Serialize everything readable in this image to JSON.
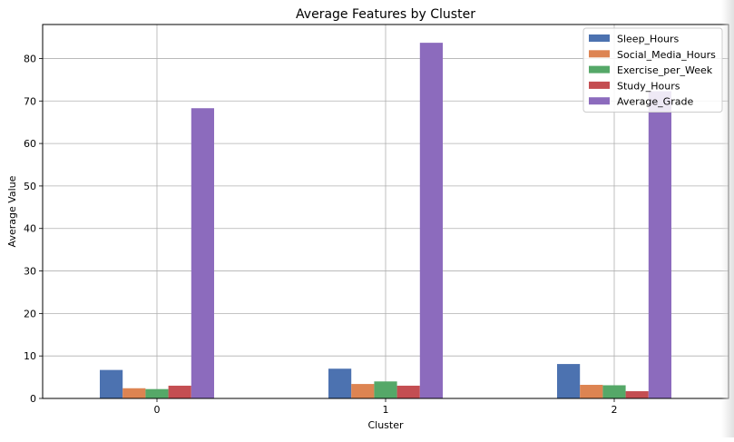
{
  "chart_data": {
    "type": "bar",
    "title": "Average Features by Cluster",
    "xlabel": "Cluster",
    "ylabel": "Average Value",
    "categories": [
      "0",
      "1",
      "2"
    ],
    "ylim": [
      0,
      88
    ],
    "yticks": [
      0,
      10,
      20,
      30,
      40,
      50,
      60,
      70,
      80
    ],
    "grid": true,
    "legend_position": "top-right",
    "series": [
      {
        "name": "Sleep_Hours",
        "color": "#4c72b0",
        "values": [
          6.7,
          7.0,
          8.1
        ]
      },
      {
        "name": "Social_Media_Hours",
        "color": "#dd8452",
        "values": [
          2.4,
          3.4,
          3.2
        ]
      },
      {
        "name": "Exercise_per_Week",
        "color": "#55a868",
        "values": [
          2.2,
          4.0,
          3.1
        ]
      },
      {
        "name": "Study_Hours",
        "color": "#c44e52",
        "values": [
          3.0,
          3.0,
          1.7
        ]
      },
      {
        "name": "Average_Grade",
        "color": "#8c6bbd",
        "values": [
          68.3,
          83.7,
          72.3
        ]
      }
    ]
  }
}
